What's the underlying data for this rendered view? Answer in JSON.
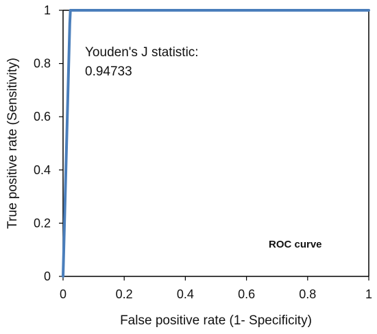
{
  "chart_data": {
    "type": "line",
    "xlabel": "False positive rate (1- Specificity)",
    "ylabel": "True positive rate (Sensitivity)",
    "xlim": [
      0,
      1
    ],
    "ylim": [
      0,
      1
    ],
    "x_ticks": [
      0,
      0.2,
      0.4,
      0.6,
      0.8,
      1
    ],
    "x_tick_labels": [
      "0",
      "0.2",
      "0.4",
      "0.6",
      "0.8",
      "1"
    ],
    "y_ticks": [
      0,
      0.2,
      0.4,
      0.6,
      0.8,
      1
    ],
    "y_tick_labels": [
      "0",
      "0.2",
      "0.4",
      "0.6",
      "0.8",
      "1"
    ],
    "grid": false,
    "series": [
      {
        "name": "ROC curve",
        "color": "#4a7ebb",
        "x": [
          0,
          0.022,
          0.024,
          0.027,
          1
        ],
        "y": [
          0,
          0.95,
          1,
          1,
          1
        ]
      }
    ],
    "annotation": {
      "line1": "Youden's J statistic:",
      "line2": "0.94733"
    },
    "legend": {
      "label": "ROC curve",
      "placement": "bottom-right"
    }
  }
}
